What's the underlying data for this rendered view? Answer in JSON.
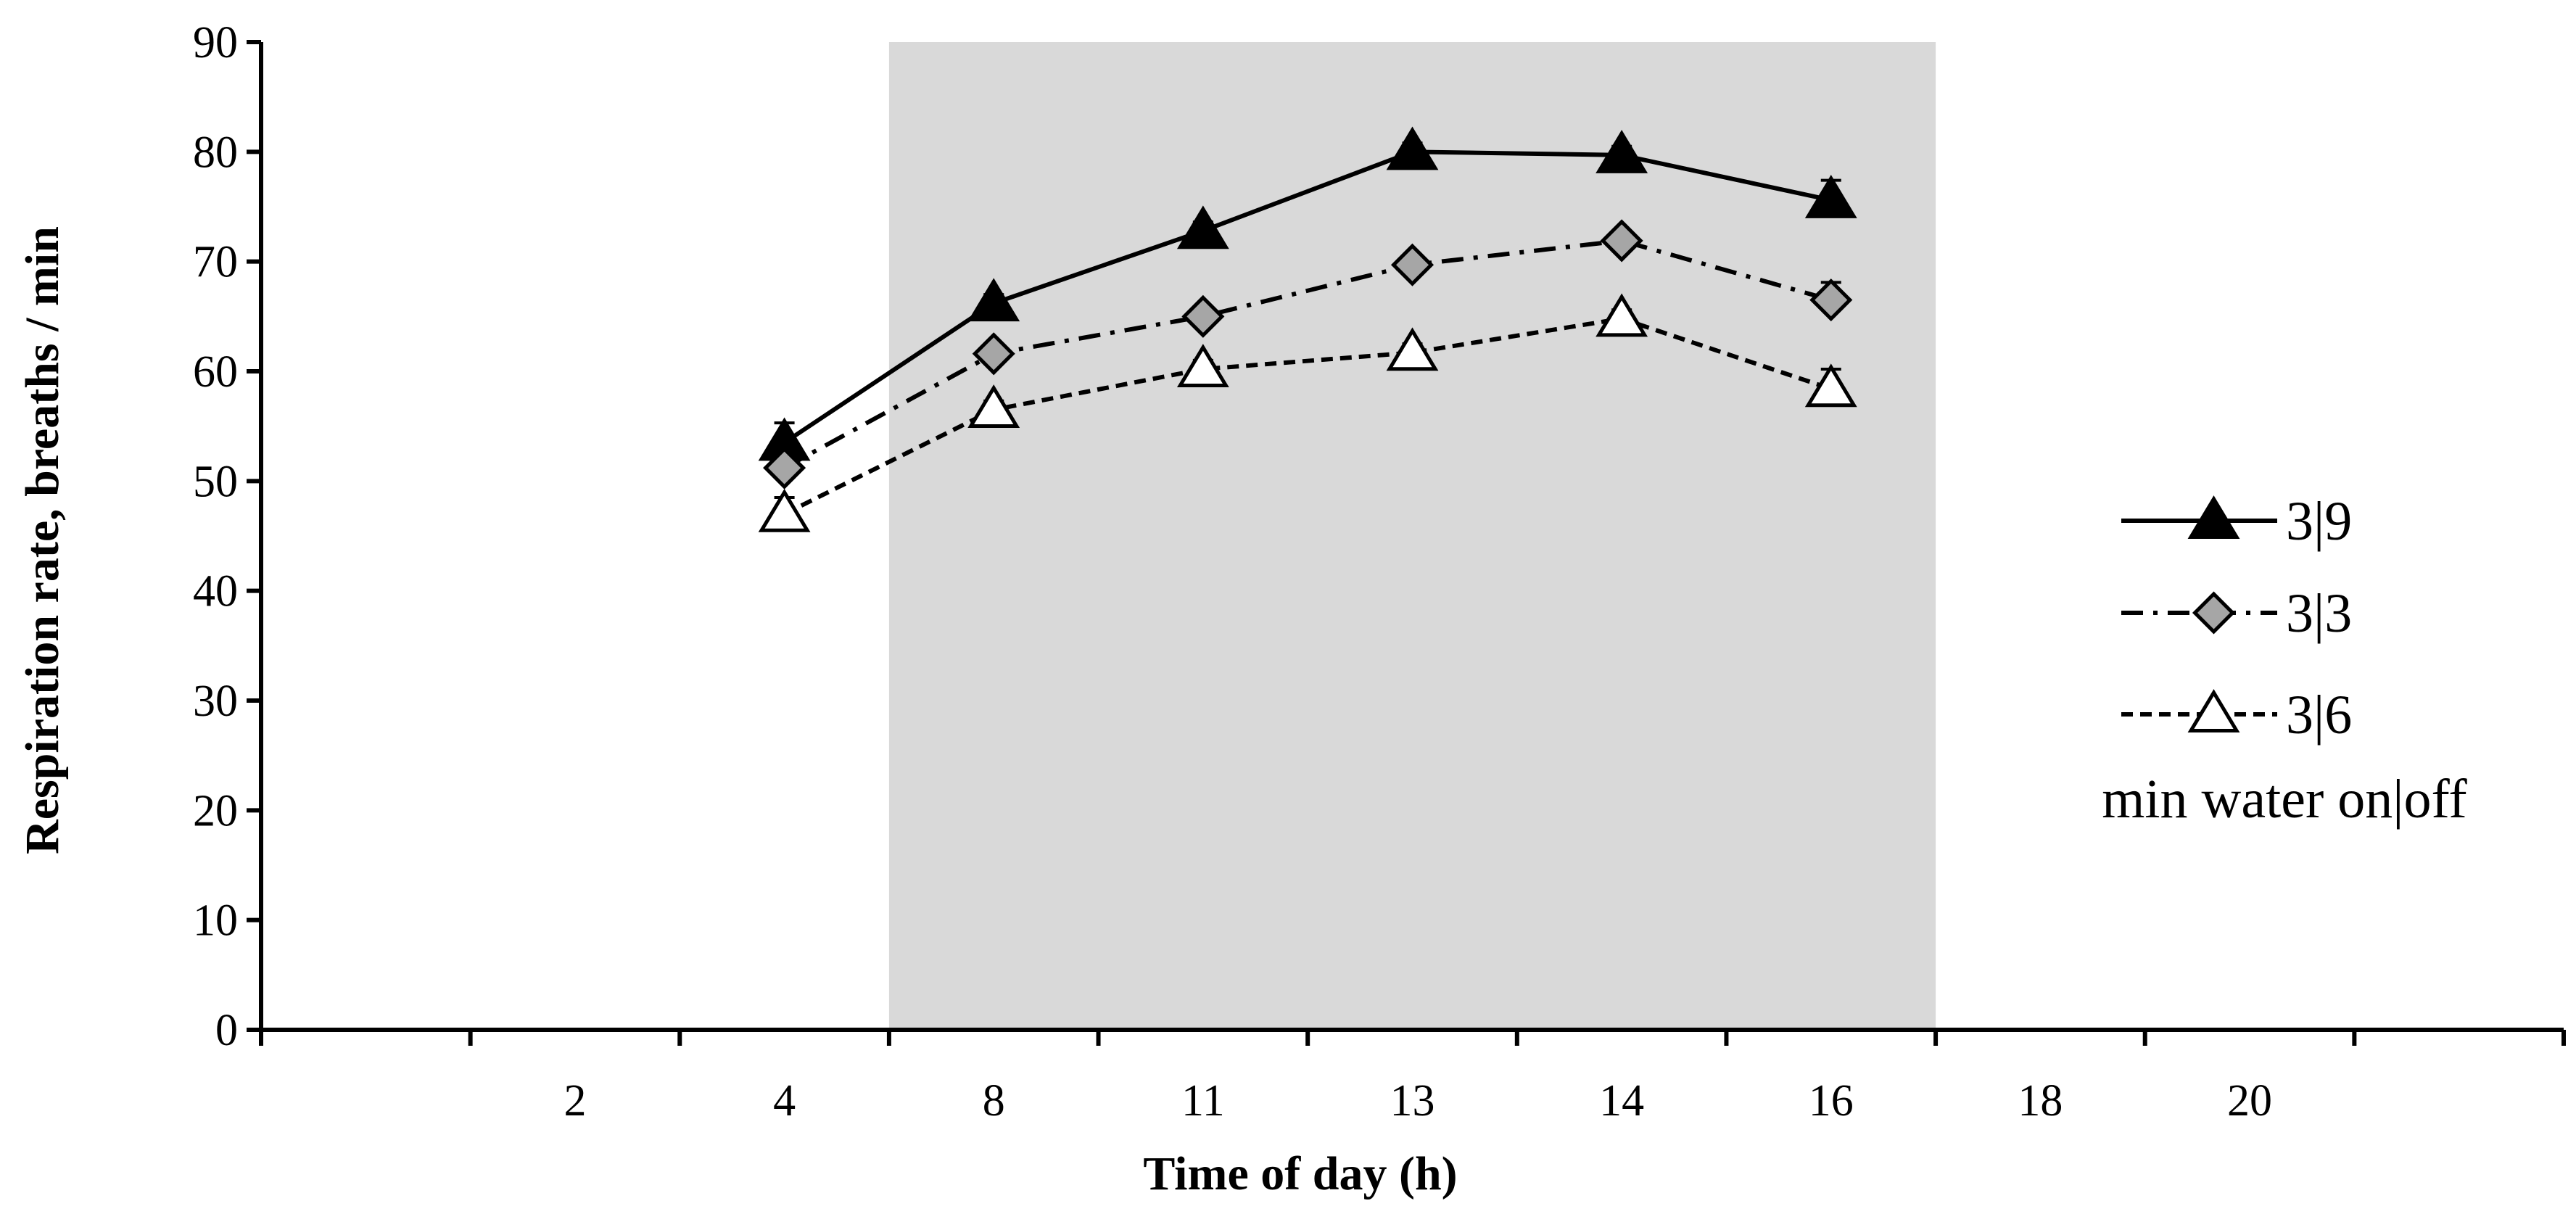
{
  "chart_data": {
    "type": "line",
    "title": "",
    "xlabel": "Time of day  (h)",
    "ylabel": "Respiration rate, breaths / min",
    "ylim": [
      0,
      90
    ],
    "yticks": [
      "0",
      "10",
      "20",
      "30",
      "40",
      "50",
      "60",
      "70",
      "80",
      "90"
    ],
    "categories": [
      "",
      "2",
      "4",
      "8",
      "11",
      "13",
      "14",
      "16",
      "18",
      "20",
      ""
    ],
    "shaded_region": {
      "from_category_boundary": 3,
      "to_category_boundary": 8
    },
    "series": [
      {
        "name": "3|9",
        "style": "solid",
        "marker": "triangle-filled",
        "values": [
          null,
          null,
          53.5,
          66.2,
          72.8,
          80.0,
          79.7,
          75.6,
          null,
          null,
          null
        ],
        "errors": [
          null,
          null,
          1.8,
          0.8,
          0.8,
          0.8,
          0.8,
          1.8,
          null,
          null,
          null
        ]
      },
      {
        "name": "3|3",
        "style": "dashdot",
        "marker": "diamond-gray",
        "values": [
          null,
          null,
          51.2,
          61.6,
          65.0,
          69.7,
          71.9,
          66.5,
          null,
          null,
          null
        ],
        "errors": [
          null,
          null,
          1.2,
          0.8,
          0.8,
          0.8,
          0.8,
          1.6,
          null,
          null,
          null
        ]
      },
      {
        "name": "3|6",
        "style": "dashed",
        "marker": "triangle-open",
        "values": [
          null,
          null,
          47.0,
          56.5,
          60.2,
          61.7,
          64.8,
          58.4,
          null,
          null,
          null
        ],
        "errors": [
          null,
          null,
          1.5,
          0.8,
          0.8,
          0.8,
          0.8,
          1.8,
          null,
          null,
          null
        ]
      }
    ],
    "legend": {
      "position": "right",
      "subtitle": "min water on|off"
    },
    "colors": {
      "shade": "#d9d9d9",
      "line": "#000000",
      "diamond_fill": "#a6a6a6"
    }
  }
}
